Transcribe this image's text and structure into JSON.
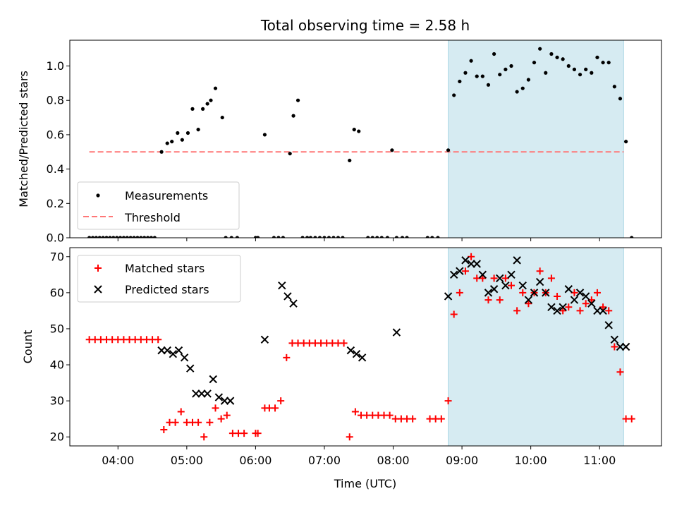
{
  "chart_data": [
    {
      "type": "scatter",
      "title": "Total observing time = 2.58 h",
      "xlabel": "",
      "ylabel": "Matched/Predicted stars",
      "xlim": [
        "03:18",
        "11:54"
      ],
      "ylim": [
        0,
        1.15
      ],
      "yticks": [
        0.0,
        0.2,
        0.4,
        0.6,
        0.8,
        1.0
      ],
      "ytick_labels": [
        "0.0",
        "0.2",
        "0.4",
        "0.6",
        "0.8",
        "1.0"
      ],
      "legend_position": "lower-left",
      "highlight_span": [
        "08:48",
        "11:21"
      ],
      "threshold": {
        "name": "Threshold",
        "y": 0.5,
        "x_range": [
          "03:35",
          "11:21"
        ],
        "color": "#ff7777"
      },
      "series": [
        {
          "name": "Measurements",
          "color": "#000000",
          "x": [
            "03:35",
            "03:38",
            "03:41",
            "03:44",
            "03:47",
            "03:50",
            "03:53",
            "03:56",
            "03:59",
            "04:02",
            "04:05",
            "04:08",
            "04:11",
            "04:14",
            "04:17",
            "04:20",
            "04:23",
            "04:26",
            "04:29",
            "04:32",
            "04:38",
            "04:43",
            "04:47",
            "04:52",
            "04:56",
            "05:01",
            "05:05",
            "05:10",
            "05:14",
            "05:18",
            "05:21",
            "05:25",
            "05:31",
            "05:34",
            "05:39",
            "05:44",
            "06:00",
            "06:02",
            "06:08",
            "06:16",
            "06:20",
            "06:24",
            "06:30",
            "06:33",
            "06:37",
            "06:41",
            "06:45",
            "06:48",
            "06:52",
            "06:56",
            "07:00",
            "07:04",
            "07:08",
            "07:12",
            "07:16",
            "07:22",
            "07:26",
            "07:30",
            "07:38",
            "07:42",
            "07:46",
            "07:50",
            "07:55",
            "07:59",
            "08:03",
            "08:08",
            "08:12",
            "08:30",
            "08:34",
            "08:39",
            "08:48",
            "08:53",
            "08:58",
            "09:03",
            "09:08",
            "09:13",
            "09:18",
            "09:23",
            "09:28",
            "09:33",
            "09:38",
            "09:43",
            "09:48",
            "09:53",
            "09:58",
            "10:03",
            "10:08",
            "10:13",
            "10:18",
            "10:23",
            "10:28",
            "10:33",
            "10:38",
            "10:43",
            "10:48",
            "10:53",
            "10:58",
            "11:03",
            "11:08",
            "11:13",
            "11:18",
            "11:23",
            "11:28"
          ],
          "y": [
            0,
            0,
            0,
            0,
            0,
            0,
            0,
            0,
            0,
            0,
            0,
            0,
            0,
            0,
            0,
            0,
            0,
            0,
            0,
            0,
            0.5,
            0.55,
            0.56,
            0.61,
            0.57,
            0.61,
            0.75,
            0.63,
            0.75,
            0.78,
            0.8,
            0.87,
            0.7,
            0,
            0,
            0,
            0,
            0,
            0.6,
            0,
            0,
            0,
            0.49,
            0.71,
            0.8,
            0,
            0,
            0,
            0,
            0,
            0,
            0,
            0,
            0,
            0,
            0.45,
            0.63,
            0.62,
            0,
            0,
            0,
            0,
            0,
            0.51,
            0,
            0,
            0,
            0,
            0,
            0,
            0.51,
            0.83,
            0.91,
            0.96,
            1.03,
            0.94,
            0.94,
            0.89,
            1.07,
            0.95,
            0.98,
            1.0,
            0.85,
            0.87,
            0.92,
            1.02,
            1.1,
            0.96,
            1.07,
            1.05,
            1.04,
            1.0,
            0.98,
            0.95,
            0.98,
            0.96,
            1.05,
            1.02,
            1.02,
            0.88,
            0.81,
            0.56,
            0
          ]
        }
      ]
    },
    {
      "type": "scatter",
      "title": "",
      "xlabel": "Time (UTC)",
      "ylabel": "Count",
      "xlim": [
        "03:18",
        "11:54"
      ],
      "ylim": [
        17.5,
        72.5
      ],
      "xticks": [
        "04:00",
        "05:00",
        "06:00",
        "07:00",
        "08:00",
        "09:00",
        "10:00",
        "11:00"
      ],
      "yticks": [
        20,
        30,
        40,
        50,
        60,
        70
      ],
      "legend_position": "upper-left",
      "highlight_span": [
        "08:48",
        "11:21"
      ],
      "series": [
        {
          "name": "Matched stars",
          "color": "#ff0000",
          "marker": "+",
          "x": [
            "03:35",
            "03:40",
            "03:45",
            "03:50",
            "03:55",
            "04:00",
            "04:05",
            "04:10",
            "04:15",
            "04:20",
            "04:25",
            "04:30",
            "04:35",
            "04:40",
            "04:45",
            "04:50",
            "04:55",
            "05:00",
            "05:05",
            "05:10",
            "05:15",
            "05:20",
            "05:25",
            "05:30",
            "05:35",
            "05:40",
            "05:45",
            "05:50",
            "06:00",
            "06:02",
            "06:08",
            "06:12",
            "06:17",
            "06:22",
            "06:27",
            "06:32",
            "06:37",
            "06:42",
            "06:47",
            "06:52",
            "06:57",
            "07:02",
            "07:07",
            "07:12",
            "07:17",
            "07:22",
            "07:27",
            "07:32",
            "07:37",
            "07:42",
            "07:47",
            "07:52",
            "07:57",
            "08:02",
            "08:07",
            "08:12",
            "08:17",
            "08:32",
            "08:37",
            "08:42",
            "08:48",
            "08:53",
            "08:58",
            "09:03",
            "09:08",
            "09:13",
            "09:18",
            "09:23",
            "09:28",
            "09:33",
            "09:38",
            "09:43",
            "09:48",
            "09:53",
            "09:58",
            "10:03",
            "10:08",
            "10:13",
            "10:18",
            "10:23",
            "10:28",
            "10:33",
            "10:38",
            "10:43",
            "10:48",
            "10:53",
            "10:58",
            "11:03",
            "11:08",
            "11:13",
            "11:18",
            "11:23",
            "11:28"
          ],
          "y": [
            47,
            47,
            47,
            47,
            47,
            47,
            47,
            47,
            47,
            47,
            47,
            47,
            47,
            22,
            24,
            24,
            27,
            24,
            24,
            24,
            20,
            24,
            28,
            25,
            26,
            21,
            21,
            21,
            21,
            21,
            28,
            28,
            28,
            30,
            42,
            46,
            46,
            46,
            46,
            46,
            46,
            46,
            46,
            46,
            46,
            20,
            27,
            26,
            26,
            26,
            26,
            26,
            26,
            25,
            25,
            25,
            25,
            25,
            25,
            25,
            30,
            54,
            60,
            66,
            70,
            64,
            64,
            58,
            64,
            58,
            64,
            62,
            55,
            60,
            57,
            60,
            66,
            60,
            64,
            59,
            55,
            56,
            60,
            55,
            57,
            58,
            60,
            56,
            55,
            45,
            38,
            25,
            25
          ]
        },
        {
          "name": "Predicted stars",
          "color": "#000000",
          "marker": "x",
          "x": [
            "04:38",
            "04:43",
            "04:48",
            "04:53",
            "04:58",
            "05:03",
            "05:08",
            "05:13",
            "05:18",
            "05:23",
            "05:28",
            "05:33",
            "05:38",
            "06:08",
            "06:23",
            "06:28",
            "06:33",
            "07:23",
            "07:28",
            "07:33",
            "08:03",
            "08:48",
            "08:53",
            "08:58",
            "09:03",
            "09:08",
            "09:13",
            "09:18",
            "09:23",
            "09:28",
            "09:33",
            "09:38",
            "09:43",
            "09:48",
            "09:53",
            "09:58",
            "10:03",
            "10:08",
            "10:13",
            "10:18",
            "10:23",
            "10:28",
            "10:33",
            "10:38",
            "10:43",
            "10:48",
            "10:53",
            "10:58",
            "11:03",
            "11:08",
            "11:13",
            "11:18",
            "11:23"
          ],
          "y": [
            44,
            44,
            43,
            44,
            42,
            39,
            32,
            32,
            32,
            36,
            31,
            30,
            30,
            47,
            62,
            59,
            57,
            44,
            43,
            42,
            49,
            59,
            65,
            66,
            69,
            68,
            68,
            65,
            60,
            61,
            64,
            62,
            65,
            69,
            62,
            58,
            60,
            63,
            60,
            56,
            55,
            56,
            61,
            58,
            60,
            59,
            57,
            55,
            55,
            51,
            47,
            45,
            45
          ]
        }
      ]
    }
  ]
}
